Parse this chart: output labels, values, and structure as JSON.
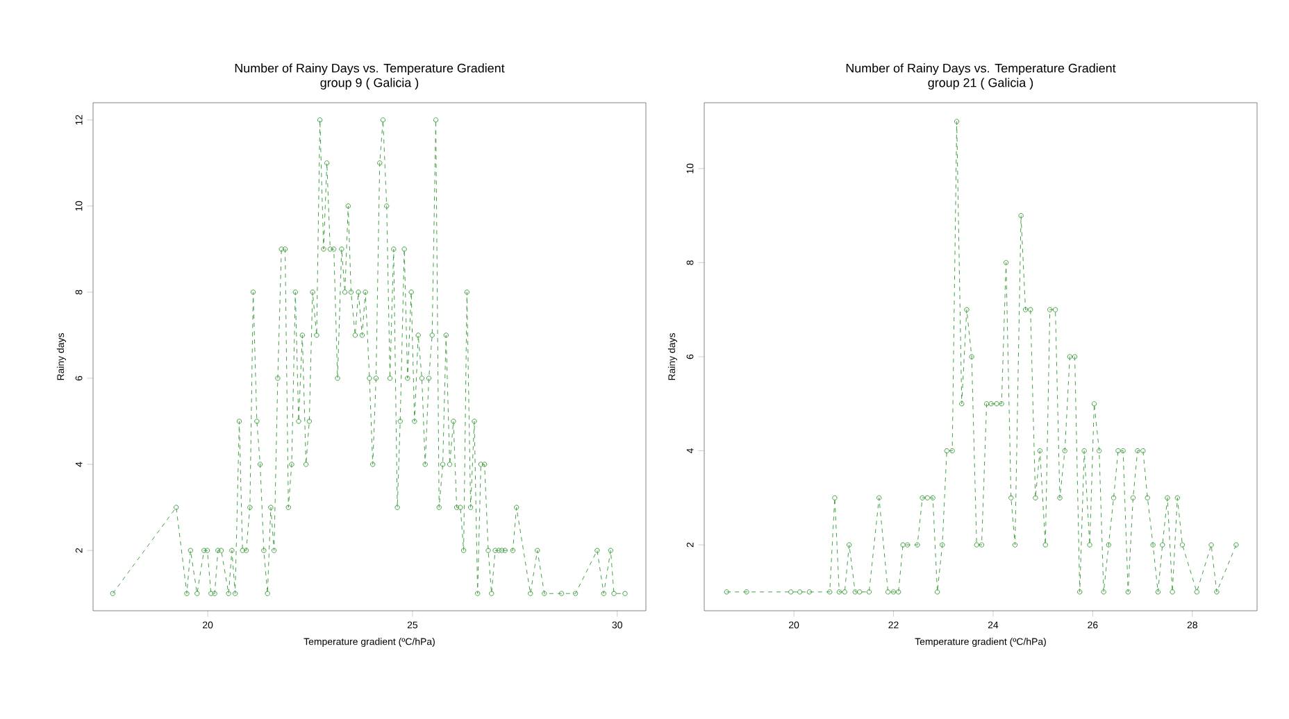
{
  "chart_data": [
    {
      "type": "line",
      "title": "Number of Rainy Days vs. Temperature Gradient",
      "subtitle": "group 9 ( Galicia )",
      "xlabel": "Temperature gradient (ºC/hPa)",
      "ylabel": "Rainy days",
      "marker": "circle",
      "line_style": "dashed",
      "xlim": [
        17.2,
        30.7
      ],
      "ylim": [
        0.6,
        12.4
      ],
      "xticks": [
        20,
        25,
        30
      ],
      "yticks": [
        2,
        4,
        6,
        8,
        10,
        12
      ],
      "series": [
        {
          "color": "#44a044",
          "x": [
            17.68,
            19.23,
            19.49,
            19.58,
            19.74,
            19.91,
            19.99,
            20.08,
            20.17,
            20.25,
            20.33,
            20.51,
            20.59,
            20.67,
            20.77,
            20.85,
            20.94,
            21.03,
            21.11,
            21.2,
            21.28,
            21.37,
            21.46,
            21.54,
            21.62,
            21.71,
            21.8,
            21.89,
            21.97,
            22.05,
            22.14,
            22.22,
            22.31,
            22.4,
            22.48,
            22.56,
            22.66,
            22.74,
            22.83,
            22.91,
            22.99,
            23.08,
            23.17,
            23.27,
            23.35,
            23.43,
            23.5,
            23.6,
            23.68,
            23.77,
            23.85,
            23.95,
            24.03,
            24.11,
            24.2,
            24.28,
            24.37,
            24.45,
            24.54,
            24.63,
            24.7,
            24.8,
            24.88,
            24.97,
            25.05,
            25.14,
            25.23,
            25.31,
            25.4,
            25.48,
            25.57,
            25.65,
            25.74,
            25.82,
            25.91,
            26.0,
            26.08,
            26.17,
            26.25,
            26.33,
            26.42,
            26.51,
            26.59,
            26.67,
            26.76,
            26.85,
            26.93,
            27.02,
            27.11,
            27.18,
            27.26,
            27.45,
            27.54,
            27.88,
            28.05,
            28.22,
            28.64,
            28.98,
            29.51,
            29.67,
            29.84,
            29.92,
            30.19
          ],
          "values": [
            1,
            3,
            1,
            2,
            1,
            2,
            2,
            1,
            1,
            2,
            2,
            1,
            2,
            1,
            5,
            2,
            2,
            3,
            8,
            5,
            4,
            2,
            1,
            3,
            2,
            6,
            9,
            9,
            3,
            4,
            8,
            5,
            7,
            4,
            5,
            8,
            7,
            12,
            9,
            11,
            9,
            9,
            6,
            9,
            8,
            10,
            8,
            7,
            8,
            7,
            8,
            6,
            4,
            6,
            11,
            12,
            10,
            6,
            9,
            3,
            5,
            9,
            6,
            8,
            5,
            7,
            6,
            4,
            6,
            7,
            12,
            3,
            4,
            7,
            4,
            5,
            3,
            3,
            2,
            8,
            3,
            5,
            1,
            4,
            4,
            2,
            1,
            2,
            2,
            2,
            2,
            2,
            3,
            1,
            2,
            1,
            1,
            1,
            2,
            1,
            2,
            1,
            1
          ]
        }
      ]
    },
    {
      "type": "line",
      "title": "Number of Rainy Days vs. Temperature Gradient",
      "subtitle": "group 21 ( Galicia )",
      "xlabel": "Temperature gradient (ºC/hPa)",
      "ylabel": "Rainy days",
      "marker": "circle",
      "line_style": "dashed",
      "xlim": [
        18.2,
        29.3
      ],
      "ylim": [
        0.6,
        11.4
      ],
      "xticks": [
        20,
        22,
        24,
        26,
        28
      ],
      "yticks": [
        2,
        4,
        6,
        8,
        10
      ],
      "series": [
        {
          "color": "#44a044",
          "x": [
            18.65,
            19.05,
            19.94,
            20.12,
            20.31,
            20.72,
            20.82,
            20.91,
            21.02,
            21.11,
            21.23,
            21.32,
            21.51,
            21.71,
            21.89,
            22.0,
            22.1,
            22.19,
            22.28,
            22.48,
            22.58,
            22.68,
            22.79,
            22.88,
            22.98,
            23.07,
            23.18,
            23.27,
            23.37,
            23.47,
            23.57,
            23.67,
            23.77,
            23.87,
            23.96,
            24.07,
            24.17,
            24.26,
            24.36,
            24.44,
            24.56,
            24.65,
            24.75,
            24.85,
            24.94,
            25.05,
            25.14,
            25.25,
            25.34,
            25.44,
            25.54,
            25.64,
            25.74,
            25.83,
            25.94,
            26.03,
            26.13,
            26.22,
            26.32,
            26.42,
            26.51,
            26.61,
            26.71,
            26.81,
            26.9,
            27.01,
            27.1,
            27.21,
            27.31,
            27.4,
            27.5,
            27.6,
            27.7,
            27.8,
            28.09,
            28.38,
            28.49,
            28.88
          ],
          "values": [
            1,
            1,
            1,
            1,
            1,
            1,
            3,
            1,
            1,
            2,
            1,
            1,
            1,
            3,
            1,
            1,
            1,
            2,
            2,
            2,
            3,
            3,
            3,
            1,
            2,
            4,
            4,
            11,
            5,
            7,
            6,
            2,
            2,
            5,
            5,
            5,
            5,
            8,
            3,
            2,
            9,
            7,
            7,
            3,
            4,
            2,
            7,
            7,
            3,
            4,
            6,
            6,
            1,
            4,
            2,
            5,
            4,
            1,
            2,
            3,
            4,
            4,
            1,
            3,
            4,
            4,
            3,
            2,
            1,
            2,
            3,
            1,
            3,
            2,
            1,
            2,
            1,
            2
          ]
        }
      ]
    }
  ]
}
